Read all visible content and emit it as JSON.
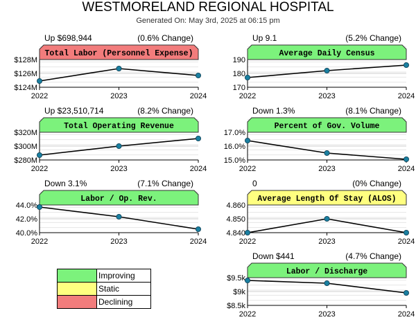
{
  "header": {
    "title": "WESTMORELAND REGIONAL HOSPITAL",
    "subtitle": "Generated On: May 3rd, 2025 at 06:15 pm"
  },
  "colors": {
    "improving": "#7cf27c",
    "static": "#ffff80",
    "declining": "#f27c7c",
    "marker": "#1a7fa0"
  },
  "legend": {
    "items": [
      {
        "label": "Improving",
        "color": "#7cf27c"
      },
      {
        "label": "Static",
        "color": "#ffff80"
      },
      {
        "label": "Declining",
        "color": "#f27c7c"
      }
    ]
  },
  "chart_data": [
    {
      "type": "line",
      "title": "Total Labor (Personnel Expense)",
      "status": "declining",
      "change_left": "Up $698,944",
      "change_right": "(0.6% Change)",
      "x": [
        "2022",
        "2023",
        "2024"
      ],
      "values": [
        124.9,
        126.7,
        125.7
      ],
      "ylim": [
        124,
        128
      ],
      "yticks": [
        124,
        126,
        128
      ],
      "ytick_labels": [
        "$124M",
        "$126M",
        "$128M"
      ]
    },
    {
      "type": "line",
      "title": "Average Daily Census",
      "status": "improving",
      "change_left": "Up 9.1",
      "change_right": "(5.2% Change)",
      "x": [
        "2022",
        "2023",
        "2024"
      ],
      "values": [
        177,
        182,
        186
      ],
      "ylim": [
        170,
        190
      ],
      "yticks": [
        170,
        180,
        190
      ],
      "ytick_labels": [
        "170",
        "180",
        "190"
      ]
    },
    {
      "type": "line",
      "title": "Total Operating Revenue",
      "status": "improving",
      "change_left": "Up $23,510,714",
      "change_right": "(8.2% Change)",
      "x": [
        "2022",
        "2023",
        "2024"
      ],
      "values": [
        287,
        300,
        311
      ],
      "ylim": [
        280,
        320
      ],
      "yticks": [
        280,
        300,
        320
      ],
      "ytick_labels": [
        "$280M",
        "$300M",
        "$320M"
      ]
    },
    {
      "type": "line",
      "title": "Percent of Gov. Volume",
      "status": "improving",
      "change_left": "Down 1.3%",
      "change_right": "(8.1% Change)",
      "x": [
        "2022",
        "2023",
        "2024"
      ],
      "values": [
        16.4,
        15.5,
        15.05
      ],
      "ylim": [
        15,
        17
      ],
      "yticks": [
        15,
        16,
        17
      ],
      "ytick_labels": [
        "15.0%",
        "16.0%",
        "17.0%"
      ]
    },
    {
      "type": "line",
      "title": "Labor / Op. Rev.",
      "status": "improving",
      "change_left": "Down 3.1%",
      "change_right": "(7.1% Change)",
      "x": [
        "2022",
        "2023",
        "2024"
      ],
      "values": [
        43.7,
        42.3,
        40.5
      ],
      "ylim": [
        40,
        44
      ],
      "yticks": [
        40,
        42,
        44
      ],
      "ytick_labels": [
        "40.0%",
        "42.0%",
        "44.0%"
      ]
    },
    {
      "type": "line",
      "title": "Average Length Of Stay (ALOS)",
      "status": "static",
      "change_left": "0",
      "change_right": "(0% Change)",
      "x": [
        "2022",
        "2023",
        "2024"
      ],
      "values": [
        4.84,
        4.85,
        4.84
      ],
      "ylim": [
        4.84,
        4.86
      ],
      "yticks": [
        4.84,
        4.85,
        4.86
      ],
      "ytick_labels": [
        "4.840",
        "4.850",
        "4.860"
      ]
    },
    {
      "type": "line",
      "title": "Labor / Discharge",
      "status": "improving",
      "change_left": "Down $441",
      "change_right": "(4.7% Change)",
      "x": [
        "2022",
        "2023",
        "2024"
      ],
      "values": [
        9.4,
        9.3,
        8.95
      ],
      "ylim": [
        8.5,
        9.5
      ],
      "yticks": [
        8.5,
        9,
        9.5
      ],
      "ytick_labels": [
        "$8.5k",
        "$9k",
        "$9.5k"
      ]
    }
  ]
}
